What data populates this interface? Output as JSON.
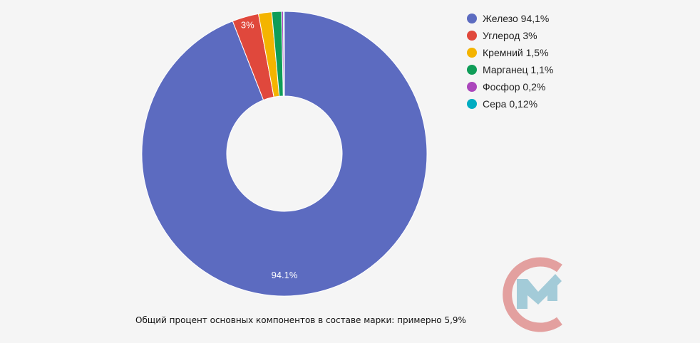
{
  "chart_data": {
    "type": "pie",
    "donut": true,
    "start_angle": "top, clockwise",
    "categories": [
      "Железо",
      "Углерод",
      "Кремний",
      "Марганец",
      "Фосфор",
      "Сера"
    ],
    "values": [
      94.1,
      3,
      1.5,
      1.1,
      0.2,
      0.12
    ],
    "colors": [
      "#5c6bc0",
      "#e0483c",
      "#f4b400",
      "#0f9d58",
      "#ab47bc",
      "#00acc1"
    ],
    "slice_labels": [
      "94.1%",
      "3%",
      "",
      "",
      "",
      ""
    ],
    "legend": {
      "placement": "right",
      "entries": [
        "Железо 94,1%",
        "Углерод 3%",
        "Кремний 1,5%",
        "Марганец 1,1%",
        "Фосфор 0,2%",
        "Сера 0,12%"
      ]
    },
    "caption": "Общий процент основных компонентов в составе марки: примерно 5,9%"
  },
  "logo": {
    "colors": {
      "ring": "#e3a09f",
      "mark": "#a3cbd8"
    }
  }
}
